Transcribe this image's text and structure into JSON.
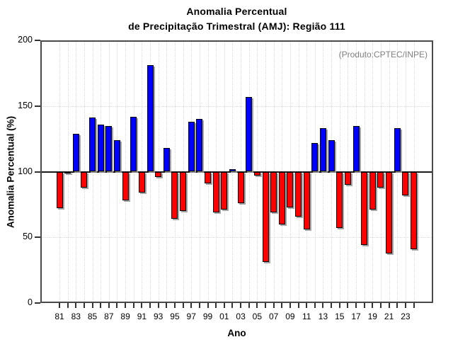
{
  "chart_data": {
    "type": "bar",
    "title_line1": "Anomalia Percentual",
    "title_line2": "de Precipitação Trimestral (AMJ): Região 111",
    "ylabel": "Anomalia Percentual (%)",
    "xlabel": "Ano",
    "annotation": "(Produto:CPTEC/INPE)",
    "ylim": [
      0,
      200
    ],
    "yticks": [
      0,
      50,
      100,
      150,
      200
    ],
    "baseline": 100,
    "grid": "dotted, horizontal at 50/150, vertical every year",
    "legend_position": "none",
    "x_label_every": 2,
    "categories": [
      "81",
      "82",
      "83",
      "84",
      "85",
      "86",
      "87",
      "88",
      "89",
      "90",
      "91",
      "92",
      "93",
      "94",
      "95",
      "96",
      "97",
      "98",
      "99",
      "00",
      "01",
      "02",
      "03",
      "04",
      "05",
      "06",
      "07",
      "08",
      "09",
      "10",
      "11",
      "12",
      "13",
      "14",
      "15",
      "16",
      "17",
      "18",
      "19",
      "20",
      "21",
      "22",
      "23",
      "24"
    ],
    "values": [
      72,
      99,
      129,
      88,
      141,
      136,
      135,
      124,
      78,
      142,
      84,
      181,
      96,
      118,
      64,
      70,
      138,
      140,
      91,
      69,
      71,
      102,
      76,
      157,
      97,
      31,
      69,
      60,
      73,
      66,
      56,
      122,
      133,
      124,
      57,
      90,
      135,
      44,
      71,
      88,
      38,
      133,
      82,
      41
    ],
    "colors": {
      "above_baseline": "#0000ff",
      "below_baseline": "#ff0000",
      "bar_outline": "#000000",
      "annotation_text": "#7f7f7f",
      "frame": "#4a4a4a",
      "baseline_line": "#1a1a1a",
      "gridline": "#d8d8d8"
    }
  }
}
